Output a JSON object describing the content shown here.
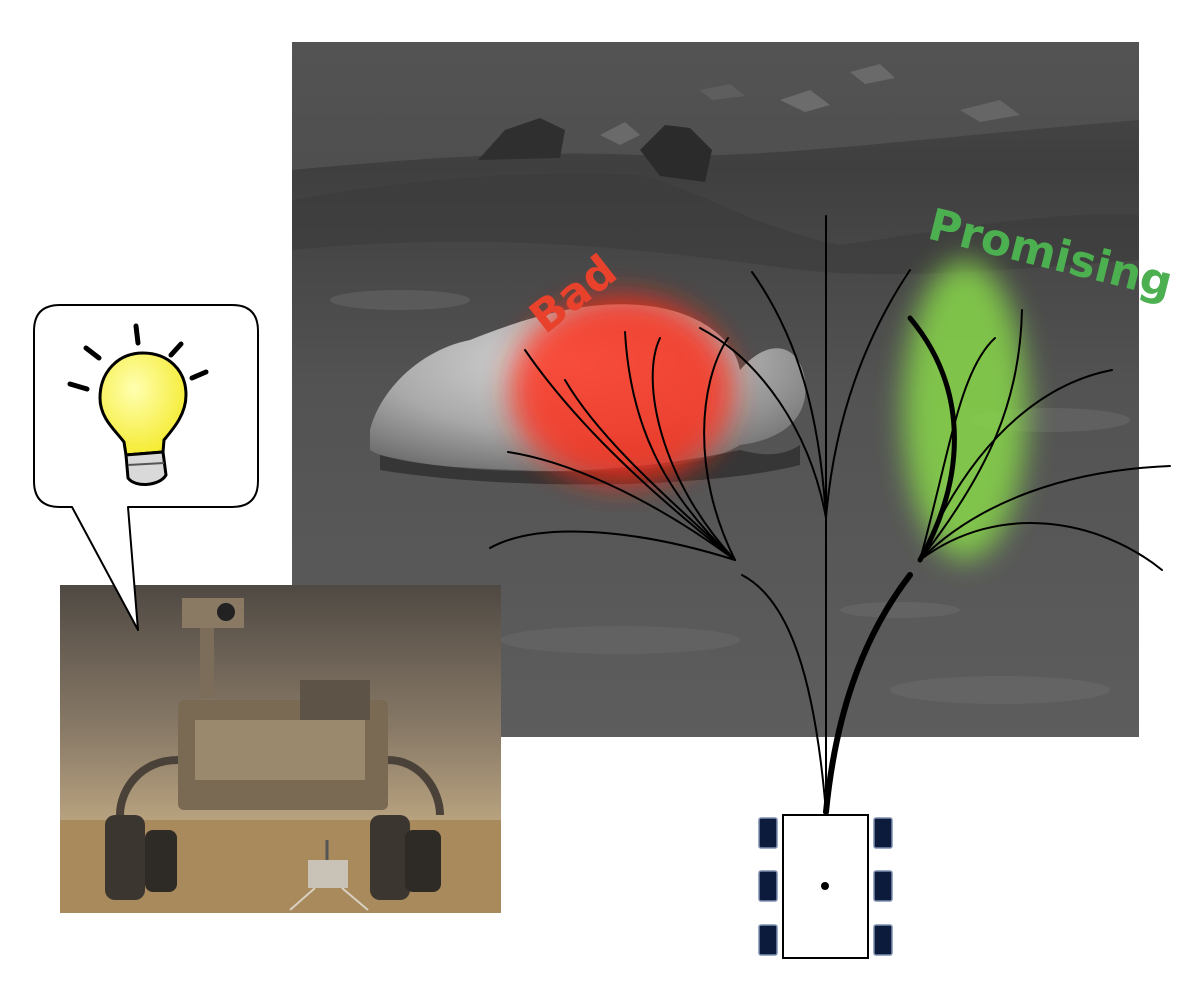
{
  "labels": {
    "bad": "Bad",
    "promising": "Promising"
  },
  "colors": {
    "bad": "#e8412c",
    "promising": "#4caf50",
    "bad_region": "#ff2a14",
    "promising_region": "#8be04a",
    "bulb": "#ffff66",
    "wheel": "#0c1a3c"
  },
  "icons": {
    "idea": "lightbulb-icon",
    "robot": "rover-icon"
  }
}
